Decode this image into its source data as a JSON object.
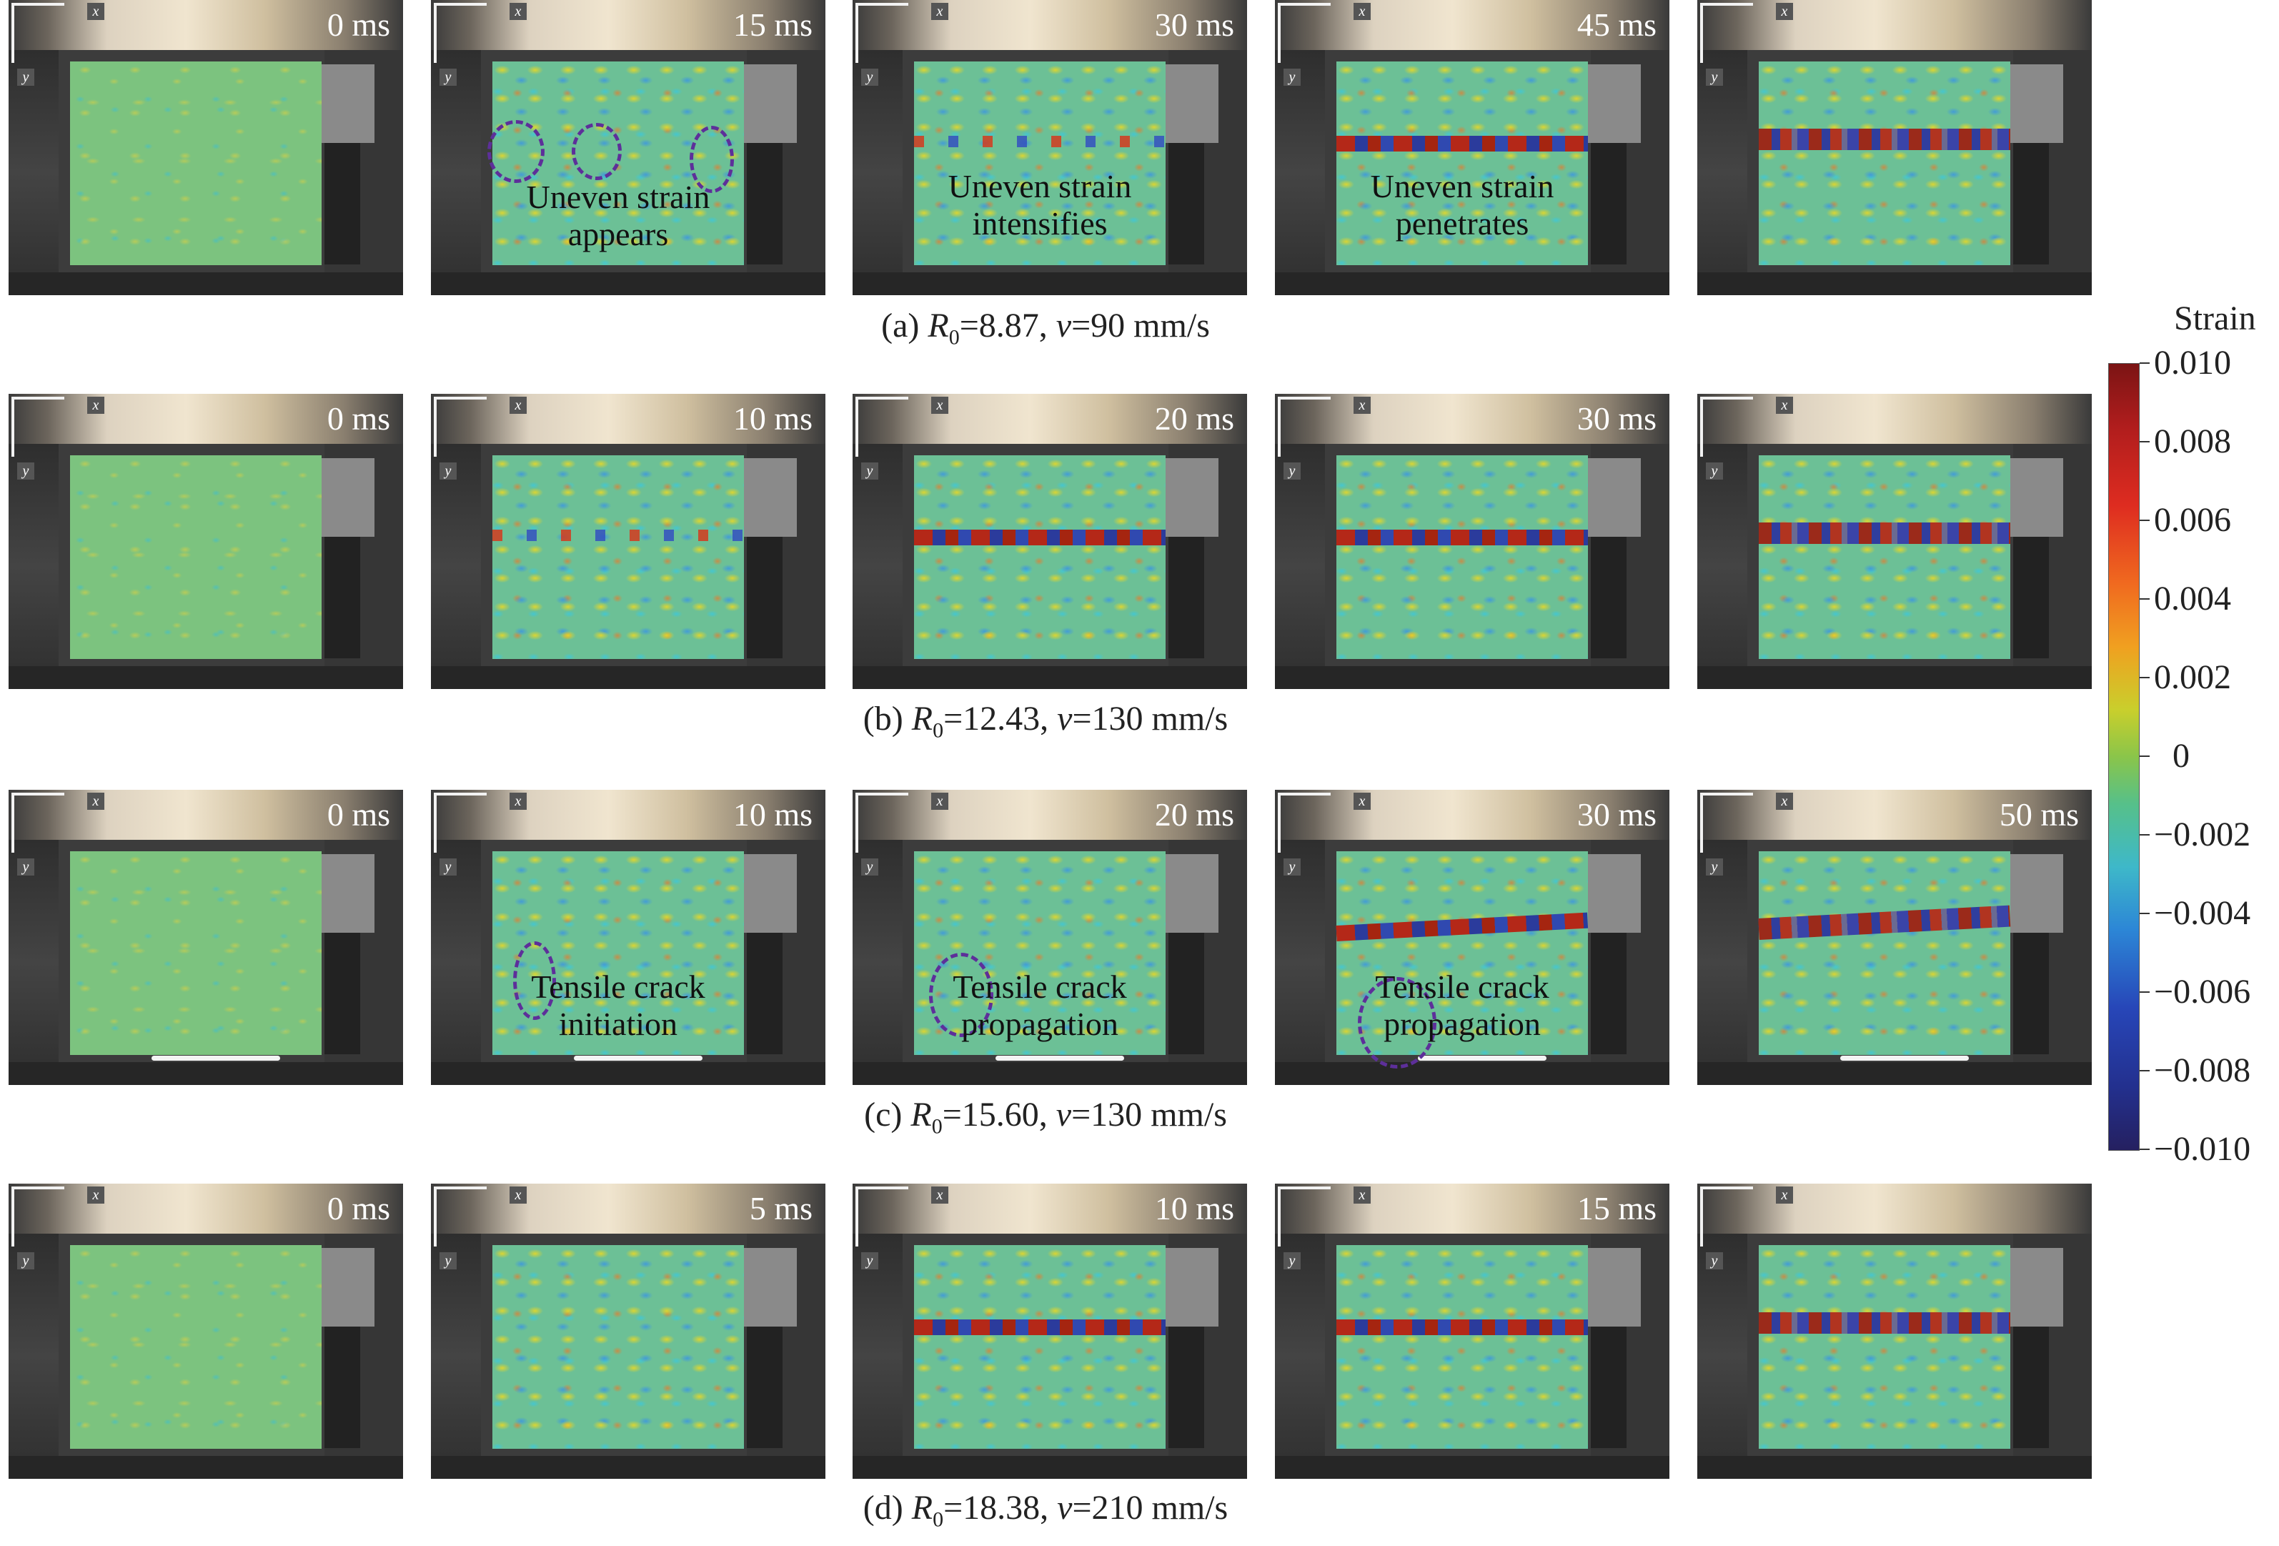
{
  "rows": [
    {
      "caption": {
        "prefix": "(a) ",
        "r_symbol": "R",
        "r_sub": "0",
        "r_value": "=8.87, ",
        "v_symbol": "v",
        "v_value": "=90 mm/s"
      },
      "panels": [
        {
          "time": "0 ms"
        },
        {
          "time": "15 ms",
          "note_line1": "Uneven strain",
          "note_line2": "appears"
        },
        {
          "time": "30 ms",
          "note_line1": "Uneven strain",
          "note_line2": "intensifies"
        },
        {
          "time": "45 ms",
          "note_line1": "Uneven strain",
          "note_line2": "penetrates"
        },
        {
          "time": ""
        }
      ]
    },
    {
      "caption": {
        "prefix": "(b) ",
        "r_symbol": "R",
        "r_sub": "0",
        "r_value": "=12.43, ",
        "v_symbol": "v",
        "v_value": "=130 mm/s"
      },
      "panels": [
        {
          "time": "0 ms"
        },
        {
          "time": "10 ms"
        },
        {
          "time": "20 ms"
        },
        {
          "time": "30 ms"
        },
        {
          "time": ""
        }
      ]
    },
    {
      "caption": {
        "prefix": "(c) ",
        "r_symbol": "R",
        "r_sub": "0",
        "r_value": "=15.60, ",
        "v_symbol": "v",
        "v_value": "=130 mm/s"
      },
      "panels": [
        {
          "time": "0 ms"
        },
        {
          "time": "10 ms",
          "note_line1": "Tensile crack",
          "note_line2": "initiation"
        },
        {
          "time": "20 ms",
          "note_line1": "Tensile crack",
          "note_line2": "propagation"
        },
        {
          "time": "30 ms",
          "note_line1": "Tensile crack",
          "note_line2": "propagation"
        },
        {
          "time": "50 ms"
        }
      ]
    },
    {
      "caption": {
        "prefix": "(d) ",
        "r_symbol": "R",
        "r_sub": "0",
        "r_value": "=18.38, ",
        "v_symbol": "v",
        "v_value": "=210 mm/s"
      },
      "panels": [
        {
          "time": "0 ms"
        },
        {
          "time": "5 ms"
        },
        {
          "time": "10 ms"
        },
        {
          "time": "15 ms"
        },
        {
          "time": ""
        }
      ]
    }
  ],
  "axes": {
    "x": "x",
    "y": "y"
  },
  "colorbar": {
    "title": "Strain",
    "labels": [
      "0.010",
      "0.008",
      "0.006",
      "0.004",
      "0.002",
      "0",
      "−0.002",
      "−0.004",
      "−0.006",
      "−0.008",
      "−0.010"
    ]
  }
}
